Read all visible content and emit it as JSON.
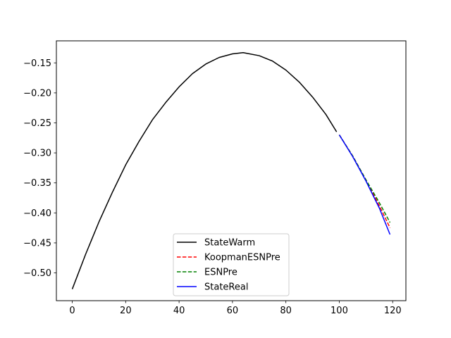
{
  "chart_data": {
    "type": "line",
    "title": "",
    "xlabel": "",
    "ylabel": "",
    "xlim": [
      -5.95,
      124.95
    ],
    "ylim": [
      -0.5463,
      -0.1133
    ],
    "xticks": [
      0,
      20,
      40,
      60,
      80,
      100,
      120
    ],
    "xtick_labels": [
      "0",
      "20",
      "40",
      "60",
      "80",
      "100",
      "120"
    ],
    "yticks": [
      -0.5,
      -0.45,
      -0.4,
      -0.35,
      -0.3,
      -0.25,
      -0.2,
      -0.15
    ],
    "ytick_labels": [
      "−0.50",
      "−0.45",
      "−0.40",
      "−0.35",
      "−0.30",
      "−0.25",
      "−0.20",
      "−0.15"
    ],
    "grid": false,
    "legend_position": "lower-center",
    "series": [
      {
        "name": "StateWarm",
        "color": "#000000",
        "dash": "solid",
        "x": [
          0,
          5,
          10,
          15,
          20,
          25,
          30,
          35,
          40,
          45,
          50,
          55,
          60,
          64,
          70,
          75,
          80,
          85,
          90,
          95,
          99
        ],
        "y": [
          -0.527,
          -0.469,
          -0.415,
          -0.366,
          -0.32,
          -0.281,
          -0.245,
          -0.216,
          -0.19,
          -0.168,
          -0.152,
          -0.141,
          -0.135,
          -0.133,
          -0.138,
          -0.147,
          -0.162,
          -0.182,
          -0.207,
          -0.236,
          -0.265
        ]
      },
      {
        "name": "KoopmanESNPre",
        "color": "#ff0000",
        "dash": "dashed",
        "x": [
          100,
          105,
          110,
          115,
          119
        ],
        "y": [
          -0.27,
          -0.305,
          -0.345,
          -0.388,
          -0.425
        ]
      },
      {
        "name": "ESNPre",
        "color": "#008000",
        "dash": "dashed",
        "x": [
          100,
          105,
          110,
          115,
          119
        ],
        "y": [
          -0.27,
          -0.305,
          -0.345,
          -0.383,
          -0.416
        ]
      },
      {
        "name": "StateReal",
        "color": "#0000ff",
        "dash": "solid",
        "x": [
          100,
          105,
          110,
          115,
          119
        ],
        "y": [
          -0.27,
          -0.306,
          -0.347,
          -0.392,
          -0.436
        ]
      }
    ]
  }
}
